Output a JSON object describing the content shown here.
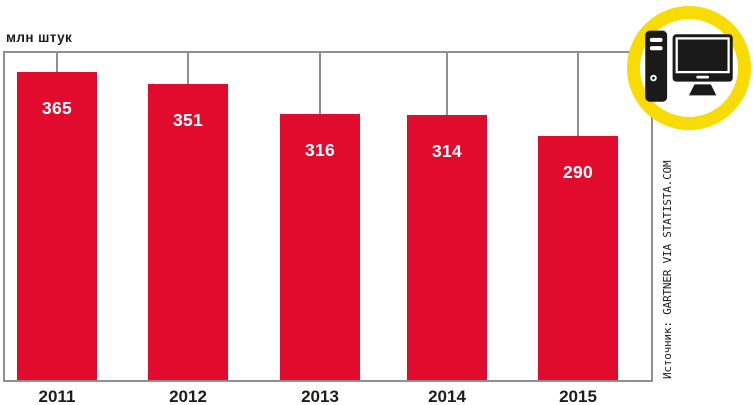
{
  "unit_label": "млн штук",
  "source_label": "Источник: GARTNER VIA STATISTA.COM",
  "colors": {
    "bar": "#e10b2e",
    "grid": "#8f8f8f",
    "ring": "#f8db00",
    "value_label": "#ffffff",
    "text": "#1d1d1b",
    "icon": "#1a1a1a"
  },
  "icon": {
    "name": "desktop-computer-icon"
  },
  "chart_data": {
    "type": "bar",
    "categories": [
      "2011",
      "2012",
      "2013",
      "2014",
      "2015"
    ],
    "values": [
      365,
      351,
      316,
      314,
      290
    ],
    "title": "",
    "xlabel": "",
    "ylabel": "млн штук",
    "ylim": [
      0,
      390
    ],
    "grid": false,
    "legend": "none",
    "value_labels": "inside-top-of-bars",
    "bar_color": "#e10b2e"
  }
}
